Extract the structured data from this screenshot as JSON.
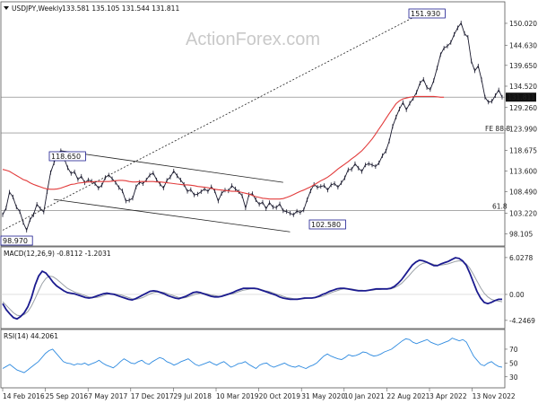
{
  "header": {
    "symbol": "USDJPY,Weekly",
    "ohlc": "133.581 135.105 131.544 131.811"
  },
  "watermark": "ActionForex.com",
  "colors": {
    "price": "#1a1a2e",
    "ma": "#e23b3b",
    "macd": "#1b1b8f",
    "signal": "#9aa0a6",
    "rsi": "#2f8be0",
    "axis": "#555555",
    "grid_ref": "#777777"
  },
  "chart_data": [
    {
      "type": "line",
      "pane": "price",
      "series": [
        {
          "name": "",
          "values": [
            102.8,
            104.5,
            108.4,
            107.2,
            104.7,
            103.6,
            100.9,
            99.0,
            101.6,
            102.8,
            105.4,
            104.3,
            103.5,
            108.5,
            113.2,
            115.6,
            117.9,
            118.6,
            116.6,
            114.4,
            113.0,
            113.4,
            111.5,
            112.3,
            110.7,
            111.4,
            111.1,
            110.5,
            109.4,
            110.1,
            112.0,
            112.6,
            111.7,
            110.8,
            109.5,
            108.7,
            106.2,
            106.4,
            106.9,
            109.7,
            110.8,
            110.5,
            111.4,
            112.6,
            113.1,
            111.4,
            110.4,
            109.4,
            111.3,
            112.1,
            113.6,
            112.4,
            111.4,
            110.3,
            108.6,
            109.0,
            107.7,
            107.9,
            108.5,
            109.2,
            108.6,
            109.7,
            108.7,
            106.2,
            108.1,
            108.9,
            108.7,
            110.0,
            109.2,
            108.5,
            107.5,
            104.5,
            107.8,
            108.0,
            106.5,
            105.4,
            105.9,
            104.3,
            105.8,
            104.7,
            104.6,
            105.5,
            103.8,
            103.6,
            103.2,
            102.8,
            103.7,
            103.4,
            104.0,
            106.5,
            108.7,
            110.3,
            109.6,
            109.8,
            110.0,
            108.9,
            110.2,
            110.5,
            109.6,
            110.7,
            111.9,
            113.9,
            114.0,
            115.4,
            114.3,
            113.5,
            115.1,
            115.4,
            115.1,
            114.7,
            115.6,
            117.4,
            118.5,
            121.0,
            124.6,
            126.9,
            128.9,
            130.5,
            128.7,
            130.3,
            131.5,
            133.0,
            135.3,
            136.2,
            134.2,
            133.7,
            135.9,
            139.0,
            142.3,
            143.9,
            144.4,
            145.3,
            147.3,
            148.9,
            150.1,
            147.5,
            146.6,
            140.7,
            138.3,
            139.5,
            136.1,
            131.8,
            130.6,
            130.8,
            132.2,
            133.6,
            131.8
          ],
          "x_range": [
            "2016-02-14",
            "2023-01-08"
          ]
        },
        {
          "name": "",
          "values": [
            114.0,
            113.8,
            113.5,
            113.0,
            112.5,
            112.0,
            111.5,
            111.2,
            110.7,
            110.3,
            110.0,
            109.7,
            109.4,
            109.2,
            109.1,
            109.1,
            109.2,
            109.4,
            109.7,
            110.0,
            110.3,
            110.4,
            110.6,
            110.7,
            110.8,
            110.9,
            110.9,
            111.0,
            111.0,
            111.0,
            111.0,
            111.0,
            111.1,
            111.2,
            111.3,
            111.3,
            111.2,
            111.0,
            110.9,
            110.9,
            111.0,
            111.0,
            111.0,
            111.0,
            111.0,
            110.9,
            110.9,
            110.8,
            110.7,
            110.6,
            110.5,
            110.4,
            110.3,
            110.2,
            110.2,
            110.1,
            110.0,
            109.8,
            109.7,
            109.6,
            109.5,
            109.3,
            109.1,
            109.0,
            108.9,
            108.8,
            108.7,
            108.6,
            108.6,
            108.5,
            108.3,
            108.1,
            107.9,
            107.6,
            107.3,
            107.1,
            106.9,
            106.8,
            106.7,
            106.7,
            106.7,
            106.7,
            106.8,
            107.1,
            107.4,
            107.8,
            108.2,
            108.6,
            108.9,
            109.3,
            109.7,
            110.2,
            110.7,
            111.2,
            111.6,
            112.1,
            112.7,
            113.4,
            114.1,
            114.7,
            115.3,
            115.9,
            116.6,
            117.2,
            117.9,
            118.6,
            119.5,
            120.5,
            121.5,
            122.7,
            124.0,
            125.2,
            126.5,
            127.8,
            129.0,
            130.2,
            130.9,
            131.4,
            131.6,
            131.8,
            131.9,
            132.0,
            132.0,
            132.0,
            132.0,
            132.0,
            132.0,
            131.9,
            131.8,
            131.8
          ],
          "x_range": [
            "2016-02-14",
            "2023-01-08"
          ]
        }
      ],
      "y_ticks": [
        "150.020",
        "144.630",
        "139.650",
        "134.520",
        "129.260",
        "123.990",
        "118.675",
        "113.600",
        "108.490",
        "103.220",
        "98.105"
      ],
      "ylim": [
        96.0,
        154.0
      ],
      "labels": {
        "high_151": "151.930",
        "high_118": "118.650",
        "low_102": "102.580",
        "low_98": "98.970",
        "last_price": "131.811",
        "fe": "FE 88.8",
        "fib": "61.8"
      },
      "fe_level": 123.0,
      "fib_level": 103.9
    },
    {
      "type": "line",
      "pane": "macd",
      "title": "MACD(12,26,9) -0.8112 -1.2031",
      "series": [
        {
          "name": "",
          "values": [
            -1.5,
            -2.5,
            -3.2,
            -3.8,
            -4.0,
            -3.6,
            -3.0,
            -2.0,
            -0.5,
            1.5,
            3.0,
            3.8,
            3.5,
            2.8,
            2.0,
            1.4,
            1.0,
            0.6,
            0.3,
            0.2,
            0.1,
            -0.1,
            -0.3,
            -0.5,
            -0.6,
            -0.5,
            -0.3,
            -0.1,
            0.1,
            0.2,
            0.1,
            0.0,
            -0.2,
            -0.4,
            -0.6,
            -0.8,
            -0.9,
            -0.7,
            -0.4,
            -0.1,
            0.2,
            0.5,
            0.6,
            0.5,
            0.3,
            0.1,
            -0.2,
            -0.4,
            -0.6,
            -0.7,
            -0.5,
            -0.3,
            0.0,
            0.3,
            0.4,
            0.3,
            0.1,
            -0.1,
            -0.3,
            -0.4,
            -0.4,
            -0.3,
            -0.1,
            0.1,
            0.3,
            0.6,
            0.8,
            1.0,
            1.0,
            1.0,
            1.0,
            0.9,
            0.7,
            0.5,
            0.3,
            0.1,
            -0.1,
            -0.4,
            -0.6,
            -0.7,
            -0.8,
            -0.8,
            -0.8,
            -0.7,
            -0.6,
            -0.6,
            -0.6,
            -0.5,
            -0.3,
            0.0,
            0.2,
            0.5,
            0.7,
            0.9,
            1.0,
            1.0,
            0.9,
            0.8,
            0.7,
            0.6,
            0.6,
            0.6,
            0.7,
            0.8,
            0.9,
            0.9,
            0.9,
            0.9,
            1.0,
            1.3,
            1.8,
            2.4,
            3.2,
            4.0,
            4.8,
            5.3,
            5.6,
            5.5,
            5.3,
            5.0,
            4.7,
            4.7,
            5.0,
            5.2,
            5.4,
            5.7,
            6.0,
            5.9,
            5.5,
            4.8,
            3.5,
            2.0,
            0.5,
            -0.6,
            -1.3,
            -1.5,
            -1.3,
            -1.0,
            -0.8,
            -0.8
          ]
        },
        {
          "name": "",
          "values": [
            -1.2,
            -1.8,
            -2.4,
            -3.0,
            -3.4,
            -3.5,
            -3.3,
            -2.8,
            -1.9,
            -0.7,
            0.6,
            1.8,
            2.6,
            3.0,
            2.9,
            2.5,
            2.0,
            1.5,
            1.0,
            0.7,
            0.4,
            0.2,
            0.0,
            -0.2,
            -0.4,
            -0.5,
            -0.5,
            -0.4,
            -0.2,
            0.0,
            0.1,
            0.1,
            0.0,
            -0.1,
            -0.3,
            -0.5,
            -0.7,
            -0.8,
            -0.7,
            -0.5,
            -0.2,
            0.1,
            0.3,
            0.4,
            0.4,
            0.3,
            0.1,
            -0.1,
            -0.3,
            -0.5,
            -0.6,
            -0.5,
            -0.3,
            -0.1,
            0.1,
            0.2,
            0.2,
            0.1,
            -0.1,
            -0.2,
            -0.3,
            -0.3,
            -0.2,
            0.0,
            0.1,
            0.3,
            0.5,
            0.7,
            0.8,
            0.9,
            0.9,
            0.9,
            0.8,
            0.6,
            0.5,
            0.3,
            0.1,
            -0.1,
            -0.3,
            -0.5,
            -0.6,
            -0.7,
            -0.7,
            -0.7,
            -0.7,
            -0.6,
            -0.6,
            -0.5,
            -0.4,
            -0.3,
            -0.1,
            0.2,
            0.4,
            0.6,
            0.8,
            0.9,
            0.9,
            0.9,
            0.8,
            0.7,
            0.7,
            0.6,
            0.7,
            0.7,
            0.8,
            0.8,
            0.9,
            0.9,
            0.9,
            1.1,
            1.4,
            1.8,
            2.4,
            3.0,
            3.7,
            4.3,
            4.8,
            5.1,
            5.2,
            5.1,
            4.9,
            4.8,
            4.8,
            4.9,
            5.0,
            5.2,
            5.4,
            5.5,
            5.4,
            5.0,
            4.3,
            3.3,
            2.2,
            1.1,
            0.2,
            -0.4,
            -0.8,
            -1.0,
            -1.1,
            -1.2
          ]
        }
      ],
      "y_ticks": [
        "6.0278",
        "0.00",
        "-4.2469"
      ],
      "ylim": [
        -5.0,
        6.6
      ]
    },
    {
      "type": "line",
      "pane": "rsi",
      "title": "RSI(14) 44.2061",
      "series": [
        {
          "name": "",
          "values": [
            42,
            45,
            48,
            44,
            40,
            38,
            36,
            40,
            44,
            48,
            52,
            58,
            64,
            68,
            70,
            64,
            58,
            52,
            50,
            49,
            47,
            49,
            48,
            50,
            47,
            49,
            51,
            54,
            50,
            47,
            45,
            43,
            47,
            52,
            56,
            53,
            50,
            49,
            52,
            54,
            50,
            48,
            52,
            55,
            58,
            56,
            52,
            50,
            47,
            49,
            52,
            54,
            56,
            52,
            48,
            46,
            48,
            50,
            52,
            49,
            47,
            50,
            52,
            48,
            44,
            46,
            49,
            50,
            52,
            48,
            45,
            42,
            47,
            49,
            50,
            46,
            44,
            46,
            48,
            50,
            47,
            45,
            44,
            46,
            44,
            42,
            45,
            47,
            50,
            55,
            60,
            63,
            60,
            58,
            56,
            55,
            58,
            62,
            60,
            61,
            63,
            66,
            65,
            62,
            60,
            61,
            63,
            66,
            68,
            70,
            74,
            78,
            82,
            85,
            84,
            80,
            78,
            80,
            82,
            84,
            80,
            78,
            76,
            78,
            80,
            82,
            86,
            84,
            82,
            84,
            80,
            70,
            60,
            54,
            48,
            46,
            50,
            52,
            48,
            45,
            44
          ]
        }
      ],
      "y_ticks": [
        "70",
        "50",
        "30"
      ],
      "ylim": [
        18,
        92
      ]
    }
  ],
  "x_axis": {
    "tick_labels": [
      "14 Feb 2016",
      "25 Sep 2016",
      "7 May 2017",
      "17 Dec 2017",
      "29 Jul 2018",
      "10 Mar 2019",
      "20 Oct 2019",
      "31 May 2020",
      "10 Jan 2021",
      "22 Aug 2021",
      "3 Apr 2022",
      "13 Nov 2022"
    ]
  }
}
